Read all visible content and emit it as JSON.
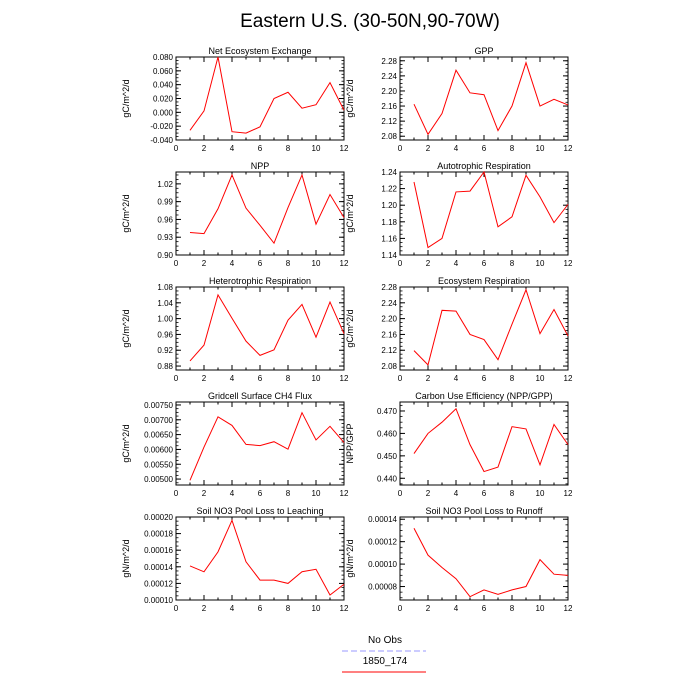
{
  "title": "Eastern U.S. (30-50N,90-70W)",
  "legend": [
    {
      "label": "No Obs",
      "color": "#9999ff",
      "dash": true
    },
    {
      "label": "1850_174",
      "color": "#ff0000",
      "dash": false
    }
  ],
  "chart_data": [
    {
      "type": "line",
      "title": "Net Ecosystem Exchange",
      "ylabel": "gC/m^2/d",
      "x": [
        1,
        2,
        3,
        4,
        5,
        6,
        7,
        8,
        9,
        10,
        11,
        12
      ],
      "xlim": [
        0,
        12
      ],
      "yticks": [
        "0.080",
        "0.060",
        "0.040",
        "0.020",
        "0.000",
        "-0.020",
        "-0.040"
      ],
      "ylim": [
        -0.04,
        0.08
      ],
      "series": [
        {
          "color": "#ff0000",
          "values": [
            -0.026,
            0.002,
            0.08,
            -0.028,
            -0.03,
            -0.021,
            0.02,
            0.029,
            0.006,
            0.011,
            0.043,
            0.003
          ]
        }
      ]
    },
    {
      "type": "line",
      "title": "GPP",
      "ylabel": "gC/m^2/d",
      "x": [
        1,
        2,
        3,
        4,
        5,
        6,
        7,
        8,
        9,
        10,
        11,
        12
      ],
      "xlim": [
        0,
        12
      ],
      "yticks": [
        "2.28",
        "2.24",
        "2.20",
        "2.16",
        "2.12",
        "2.08"
      ],
      "ylim": [
        2.07,
        2.29
      ],
      "series": [
        {
          "color": "#ff0000",
          "values": [
            2.165,
            2.085,
            2.14,
            2.255,
            2.195,
            2.19,
            2.095,
            2.16,
            2.275,
            2.16,
            2.178,
            2.163
          ]
        }
      ]
    },
    {
      "type": "line",
      "title": "NPP",
      "ylabel": "gC/m^2/d",
      "x": [
        1,
        2,
        3,
        4,
        5,
        6,
        7,
        8,
        9,
        10,
        11,
        12
      ],
      "xlim": [
        0,
        12
      ],
      "yticks": [
        "1.02",
        "0.99",
        "0.96",
        "0.93",
        "0.90"
      ],
      "ylim": [
        0.9,
        1.04
      ],
      "series": [
        {
          "color": "#ff0000",
          "values": [
            0.938,
            0.936,
            0.978,
            1.035,
            0.979,
            0.95,
            0.92,
            0.98,
            1.035,
            0.952,
            1.002,
            0.963
          ]
        }
      ]
    },
    {
      "type": "line",
      "title": "Autotrophic Respiration",
      "ylabel": "gC/m^2/d",
      "x": [
        1,
        2,
        3,
        4,
        5,
        6,
        7,
        8,
        9,
        10,
        11,
        12
      ],
      "xlim": [
        0,
        12
      ],
      "yticks": [
        "1.24",
        "1.22",
        "1.20",
        "1.18",
        "1.16",
        "1.14"
      ],
      "ylim": [
        1.14,
        1.24
      ],
      "series": [
        {
          "color": "#ff0000",
          "values": [
            1.228,
            1.149,
            1.16,
            1.216,
            1.217,
            1.24,
            1.174,
            1.186,
            1.236,
            1.21,
            1.179,
            1.201
          ]
        }
      ]
    },
    {
      "type": "line",
      "title": "Heterotrophic Respiration",
      "ylabel": "gC/m^2/d",
      "x": [
        1,
        2,
        3,
        4,
        5,
        6,
        7,
        8,
        9,
        10,
        11,
        12
      ],
      "xlim": [
        0,
        12
      ],
      "yticks": [
        "1.08",
        "1.04",
        "1.00",
        "0.96",
        "0.92",
        "0.88"
      ],
      "ylim": [
        0.87,
        1.08
      ],
      "series": [
        {
          "color": "#ff0000",
          "values": [
            0.893,
            0.933,
            1.06,
            1.001,
            0.943,
            0.907,
            0.921,
            0.996,
            1.036,
            0.953,
            1.042,
            0.962
          ]
        }
      ]
    },
    {
      "type": "line",
      "title": "Ecosystem Respiration",
      "ylabel": "gC/m^2/d",
      "x": [
        1,
        2,
        3,
        4,
        5,
        6,
        7,
        8,
        9,
        10,
        11,
        12
      ],
      "xlim": [
        0,
        12
      ],
      "yticks": [
        "2.28",
        "2.24",
        "2.20",
        "2.16",
        "2.12",
        "2.08"
      ],
      "ylim": [
        2.07,
        2.28
      ],
      "series": [
        {
          "color": "#ff0000",
          "values": [
            2.119,
            2.083,
            2.221,
            2.219,
            2.16,
            2.147,
            2.096,
            2.186,
            2.273,
            2.162,
            2.223,
            2.156
          ]
        }
      ]
    },
    {
      "type": "line",
      "title": "Gridcell Surface CH4 Flux",
      "ylabel": "gC/m^2/d",
      "x": [
        1,
        2,
        3,
        4,
        5,
        6,
        7,
        8,
        9,
        10,
        11,
        12
      ],
      "xlim": [
        0,
        12
      ],
      "yticks": [
        "0.00750",
        "0.00700",
        "0.00650",
        "0.00600",
        "0.00550",
        "0.00500"
      ],
      "ylim": [
        0.0048,
        0.0076
      ],
      "series": [
        {
          "color": "#ff0000",
          "values": [
            0.00496,
            0.00608,
            0.0071,
            0.00681,
            0.00617,
            0.00613,
            0.00626,
            0.00601,
            0.00724,
            0.00632,
            0.00678,
            0.00623
          ]
        }
      ]
    },
    {
      "type": "line",
      "title": "Carbon Use Efficiency (NPP/GPP)",
      "ylabel": "NPP/GPP",
      "x": [
        1,
        2,
        3,
        4,
        5,
        6,
        7,
        8,
        9,
        10,
        11,
        12
      ],
      "xlim": [
        0,
        12
      ],
      "yticks": [
        "0.470",
        "0.460",
        "0.450",
        "0.440"
      ],
      "ylim": [
        0.437,
        0.474
      ],
      "series": [
        {
          "color": "#ff0000",
          "values": [
            0.451,
            0.46,
            0.465,
            0.471,
            0.455,
            0.443,
            0.445,
            0.463,
            0.462,
            0.446,
            0.464,
            0.455
          ]
        }
      ]
    },
    {
      "type": "line",
      "title": "Soil NO3 Pool Loss to Leaching",
      "ylabel": "gN/m^2/d",
      "x": [
        1,
        2,
        3,
        4,
        5,
        6,
        7,
        8,
        9,
        10,
        11,
        12
      ],
      "xlim": [
        0,
        12
      ],
      "yticks": [
        "0.00020",
        "0.00018",
        "0.00016",
        "0.00014",
        "0.00012",
        "0.00010"
      ],
      "ylim": [
        0.0001,
        0.0002
      ],
      "series": [
        {
          "color": "#ff0000",
          "values": [
            0.000141,
            0.000134,
            0.000158,
            0.000196,
            0.000146,
            0.000124,
            0.000124,
            0.00012,
            0.000134,
            0.000137,
            0.000106,
            0.000119
          ]
        }
      ]
    },
    {
      "type": "line",
      "title": "Soil NO3 Pool Loss to Runoff",
      "ylabel": "gN/m^2/d",
      "x": [
        1,
        2,
        3,
        4,
        5,
        6,
        7,
        8,
        9,
        10,
        11,
        12
      ],
      "xlim": [
        0,
        12
      ],
      "yticks": [
        "0.00014",
        "0.00012",
        "0.00010",
        "0.00008"
      ],
      "ylim": [
        6.8e-05,
        0.000142
      ],
      "series": [
        {
          "color": "#ff0000",
          "values": [
            0.000132,
            0.000108,
            9.7e-05,
            8.7e-05,
            7.1e-05,
            7.7e-05,
            7.3e-05,
            7.7e-05,
            8e-05,
            0.000104,
            9.1e-05,
            9e-05
          ]
        }
      ]
    }
  ]
}
